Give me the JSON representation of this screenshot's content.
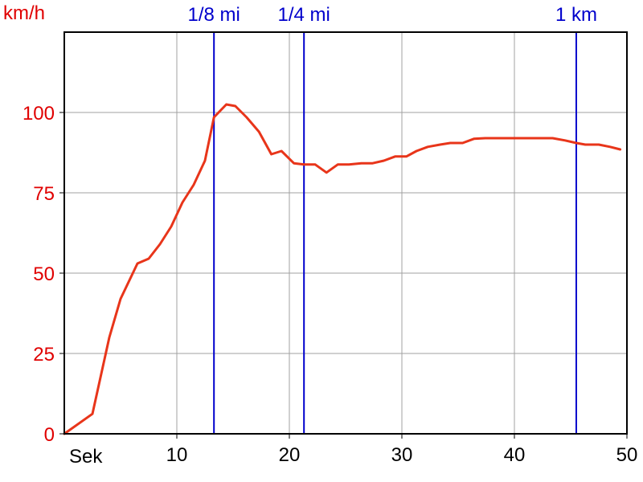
{
  "chart_data": {
    "type": "line",
    "ylabel": "km/h",
    "xlabel": "Sek",
    "xlim": [
      0,
      50
    ],
    "ylim": [
      0,
      125
    ],
    "x_ticks": [
      {
        "value": 10,
        "label": "10"
      },
      {
        "value": 20,
        "label": "20"
      },
      {
        "value": 30,
        "label": "30"
      },
      {
        "value": 40,
        "label": "40"
      },
      {
        "value": 50,
        "label": "50"
      }
    ],
    "y_ticks": [
      {
        "value": 0,
        "label": "0"
      },
      {
        "value": 25,
        "label": "25"
      },
      {
        "value": 50,
        "label": "50"
      },
      {
        "value": 75,
        "label": "75"
      },
      {
        "value": 100,
        "label": "100"
      }
    ],
    "grid": true,
    "colors": {
      "line": "#e8351a",
      "marker": "#0000cc",
      "ytext": "#e00000",
      "grid": "#a0a0a0",
      "axis": "#000000"
    },
    "markers": [
      {
        "label": "1/8 mi",
        "x": 13.3
      },
      {
        "label": "1/4 mi",
        "x": 21.3
      },
      {
        "label": "1 km",
        "x": 45.5
      }
    ],
    "series": [
      {
        "x": [
          0,
          2.5,
          4.0,
          5.0,
          6.5,
          7.5,
          8.5,
          9.5,
          10.5,
          11.5,
          12.5,
          13.3,
          14.4,
          15.2,
          16.2,
          17.3,
          18.4,
          19.3,
          20.4,
          21.3,
          22.3,
          23.3,
          24.3,
          25.3,
          26.4,
          27.4,
          28.4,
          29.4,
          30.4,
          31.3,
          32.3,
          33.4,
          34.3,
          35.4,
          36.4,
          37.4,
          38.4,
          40.4,
          42.4,
          43.4,
          44.5,
          45.5,
          46.3,
          47.5,
          48.5,
          49.4
        ],
        "y": [
          0,
          6.2,
          30,
          42,
          53,
          54.5,
          59,
          64.5,
          72,
          77.5,
          85,
          98.5,
          102.5,
          102,
          98.5,
          94,
          87,
          88,
          84.2,
          83.8,
          83.8,
          81.3,
          83.8,
          83.8,
          84.2,
          84.2,
          85,
          86.3,
          86.3,
          88,
          89.3,
          90,
          90.5,
          90.5,
          91.8,
          92,
          92,
          92,
          92,
          92,
          91.3,
          90.5,
          90,
          90,
          89.3,
          88.5
        ]
      }
    ]
  }
}
